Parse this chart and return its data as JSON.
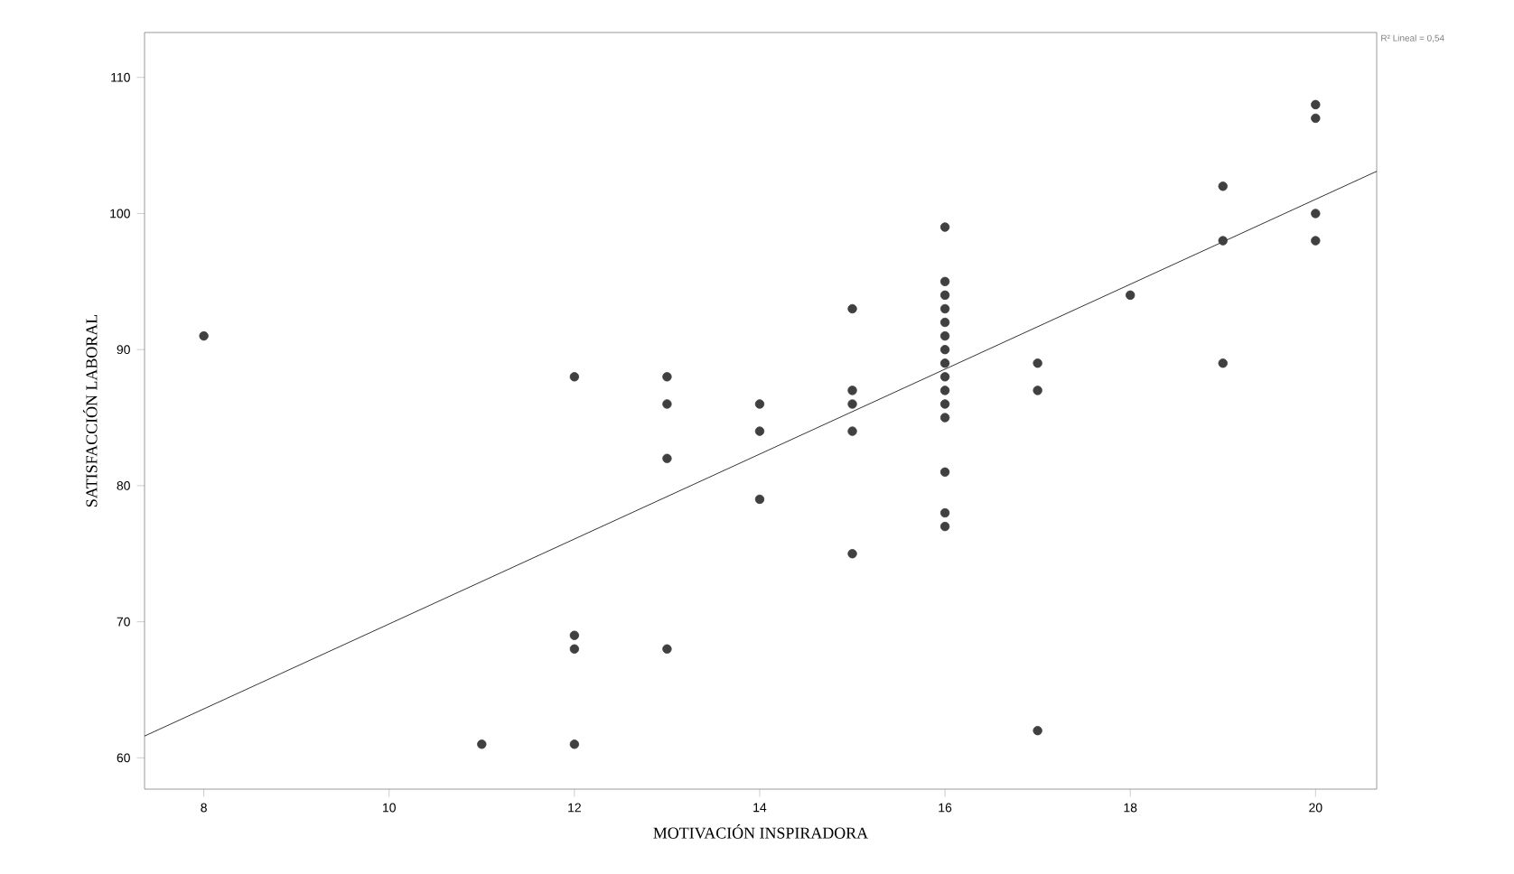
{
  "chart_data": {
    "type": "scatter",
    "xlabel": "MOTIVACIÓN INSPIRADORA",
    "ylabel": "SATISFACCIÓN LABORAL",
    "annotations": [
      "R² Lineal = 0,54"
    ],
    "xlim": [
      7.36,
      20.66
    ],
    "ylim": [
      57.7,
      113.3
    ],
    "xticks": [
      8,
      10,
      12,
      14,
      16,
      18,
      20
    ],
    "yticks": [
      60,
      70,
      80,
      90,
      100,
      110
    ],
    "grid": false,
    "series": [
      {
        "marker": "circle",
        "color": "#404040",
        "x": [
          8,
          11,
          12,
          12,
          12,
          12,
          13,
          13,
          13,
          13,
          14,
          14,
          14,
          15,
          15,
          15,
          15,
          15,
          16,
          16,
          16,
          16,
          16,
          16,
          16,
          16,
          16,
          16,
          16,
          16,
          16,
          16,
          16,
          17,
          17,
          17,
          18,
          19,
          19,
          19,
          20,
          20,
          20,
          20
        ],
        "values": [
          91,
          61,
          88,
          69,
          68,
          61,
          88,
          86,
          82,
          68,
          86,
          84,
          79,
          93,
          87,
          86,
          84,
          75,
          99,
          95,
          94,
          93,
          92,
          91,
          90,
          89,
          88,
          87,
          86,
          85,
          81,
          78,
          77,
          89,
          87,
          62,
          94,
          102,
          98,
          89,
          108,
          107,
          100,
          98
        ]
      },
      {
        "type": "line",
        "color": "#000000",
        "x": [
          7.36,
          20.66
        ],
        "values": [
          61.6,
          103.1
        ]
      }
    ]
  }
}
